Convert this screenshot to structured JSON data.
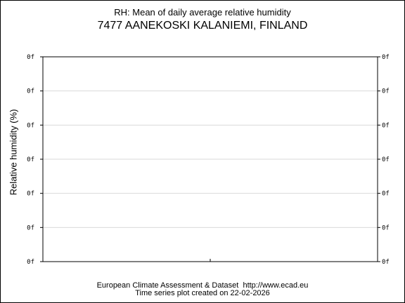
{
  "chart_data": {
    "type": "line",
    "title": "RH: Mean of daily average relative humidity",
    "subtitle": "7477 AANEKOSKI KALANIEMI, FINLAND",
    "xlabel": "",
    "ylabel": "Relative humidity (%)",
    "ytick_labels": [
      "0f",
      "0f",
      "0f",
      "0f",
      "0f",
      "0f",
      "0f"
    ],
    "grid": true,
    "series": []
  },
  "footer": {
    "line1": "European Climate Assessment & Dataset  http://www.ecad.eu",
    "line2": "Time series plot created on 22-02-2026"
  },
  "colors": {
    "gridline": "#d9d9d9",
    "axis": "#000000"
  }
}
